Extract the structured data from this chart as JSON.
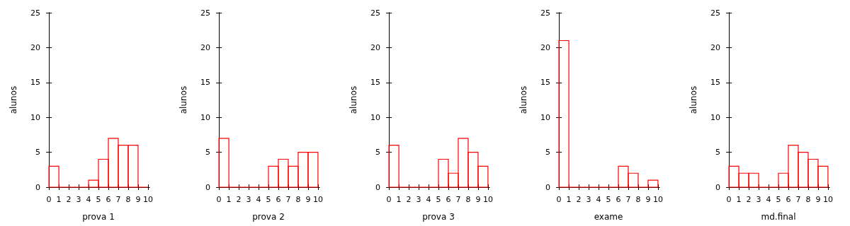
{
  "chart_data": [
    {
      "type": "histogram",
      "xlabel": "prova 1",
      "ylabel": "alunos",
      "bins": [
        0,
        1,
        2,
        3,
        4,
        5,
        6,
        7,
        8,
        9,
        10
      ],
      "values": [
        3,
        0,
        0,
        0,
        1,
        4,
        7,
        6,
        6,
        0
      ],
      "color": "#ff0000",
      "xlim": [
        -0.15,
        10.15
      ],
      "xticks": [
        0,
        1,
        2,
        3,
        4,
        5,
        6,
        7,
        8,
        9,
        10
      ],
      "ylim": [
        0,
        25
      ],
      "yticks": [
        0,
        5,
        10,
        15,
        20,
        25
      ],
      "grid": false
    },
    {
      "type": "histogram",
      "xlabel": "prova 2",
      "ylabel": "alunos",
      "bins": [
        0,
        1,
        2,
        3,
        4,
        5,
        6,
        7,
        8,
        9,
        10
      ],
      "values": [
        7,
        0,
        0,
        0,
        0,
        3,
        4,
        3,
        5,
        5
      ],
      "color": "#ff0000",
      "xlim": [
        -0.15,
        10.15
      ],
      "xticks": [
        0,
        1,
        2,
        3,
        4,
        5,
        6,
        7,
        8,
        9,
        10
      ],
      "ylim": [
        0,
        25
      ],
      "yticks": [
        0,
        5,
        10,
        15,
        20,
        25
      ],
      "grid": false
    },
    {
      "type": "histogram",
      "xlabel": "prova 3",
      "ylabel": "alunos",
      "bins": [
        0,
        1,
        2,
        3,
        4,
        5,
        6,
        7,
        8,
        9,
        10
      ],
      "values": [
        6,
        0,
        0,
        0,
        0,
        4,
        2,
        7,
        5,
        3
      ],
      "color": "#ff0000",
      "xlim": [
        -0.15,
        10.15
      ],
      "xticks": [
        0,
        1,
        2,
        3,
        4,
        5,
        6,
        7,
        8,
        9,
        10
      ],
      "ylim": [
        0,
        25
      ],
      "yticks": [
        0,
        5,
        10,
        15,
        20,
        25
      ],
      "grid": false
    },
    {
      "type": "histogram",
      "xlabel": "exame",
      "ylabel": "alunos",
      "bins": [
        0,
        1,
        2,
        3,
        4,
        5,
        6,
        7,
        8,
        9,
        10
      ],
      "values": [
        21,
        0,
        0,
        0,
        0,
        0,
        3,
        2,
        0,
        1
      ],
      "color": "#ff0000",
      "xlim": [
        -0.15,
        10.15
      ],
      "xticks": [
        0,
        1,
        2,
        3,
        4,
        5,
        6,
        7,
        8,
        9,
        10
      ],
      "ylim": [
        0,
        25
      ],
      "yticks": [
        0,
        5,
        10,
        15,
        20,
        25
      ],
      "grid": false
    },
    {
      "type": "histogram",
      "xlabel": "md.final",
      "ylabel": "alunos",
      "bins": [
        0,
        1,
        2,
        3,
        4,
        5,
        6,
        7,
        8,
        9,
        10
      ],
      "values": [
        3,
        2,
        2,
        0,
        0,
        2,
        6,
        5,
        4,
        3
      ],
      "color": "#ff0000",
      "xlim": [
        -0.15,
        10.15
      ],
      "xticks": [
        0,
        1,
        2,
        3,
        4,
        5,
        6,
        7,
        8,
        9,
        10
      ],
      "ylim": [
        0,
        25
      ],
      "yticks": [
        0,
        5,
        10,
        15,
        20,
        25
      ],
      "grid": false
    }
  ]
}
